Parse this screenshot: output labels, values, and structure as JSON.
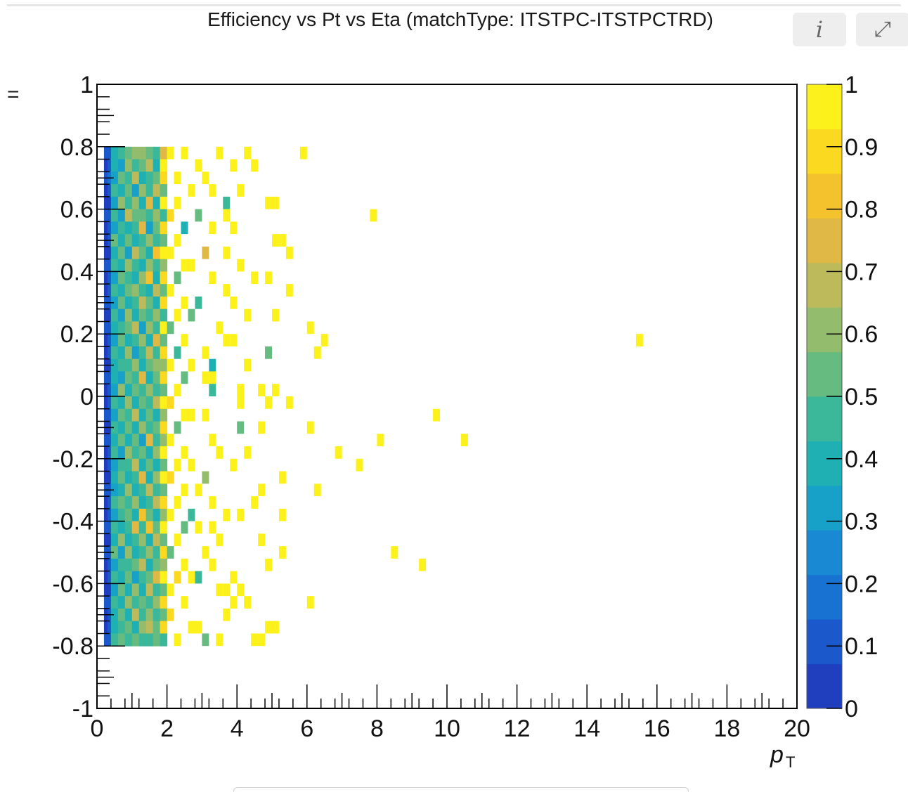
{
  "header": {
    "title": "Efficiency vs Pt vs Eta (matchType: ITSTPC-ITSTPCTRD)",
    "info_icon": "info-icon",
    "info_glyph": "i",
    "expand_icon": "expand-icon",
    "expand_glyph": "⤢"
  },
  "corner_glyph": "=",
  "chart_data": {
    "type": "heatmap",
    "title": "Efficiency vs Pt vs Eta (matchType: ITSTPC-ITSTPCTRD)",
    "xlabel": "p",
    "xlabel_sub": "T",
    "ylabel": "",
    "xlim": [
      0,
      20
    ],
    "ylim": [
      -1,
      1
    ],
    "zlim": [
      0,
      1
    ],
    "x_ticks": [
      "0",
      "2",
      "4",
      "6",
      "8",
      "10",
      "12",
      "14",
      "16",
      "18",
      "20"
    ],
    "y_ticks": [
      "-1",
      "-0.8",
      "-0.6",
      "-0.4",
      "-0.2",
      "0",
      "0.2",
      "0.4",
      "0.6",
      "0.8",
      "1"
    ],
    "z_ticks": [
      "0",
      "0.1",
      "0.2",
      "0.3",
      "0.4",
      "0.5",
      "0.6",
      "0.7",
      "0.8",
      "0.9",
      "1"
    ],
    "grid": false,
    "colorbar": "right",
    "palette": [
      "#1f3fbf",
      "#1a58cc",
      "#1872d2",
      "#1889d2",
      "#17a0c8",
      "#1fb0b4",
      "#3bb79a",
      "#66bb80",
      "#93bd6c",
      "#bdba5c",
      "#dfb845",
      "#f4c22c",
      "#fbd920",
      "#fdf11b"
    ],
    "background": "#ffffff",
    "frame_color": "#000000",
    "bin_width": 0.2,
    "bin_height": 0.04,
    "eta_rows": [
      0.78,
      0.74,
      0.7,
      0.66,
      0.62,
      0.58,
      0.54,
      0.5,
      0.46,
      0.42,
      0.38,
      0.34,
      0.3,
      0.26,
      0.22,
      0.18,
      0.14,
      0.1,
      0.06,
      0.02,
      -0.02,
      -0.06,
      -0.1,
      -0.14,
      -0.18,
      -0.22,
      -0.26,
      -0.3,
      -0.34,
      -0.38,
      -0.42,
      -0.46,
      -0.5,
      -0.54,
      -0.58,
      -0.62,
      -0.66,
      -0.7,
      -0.74,
      -0.78
    ],
    "pt_bins": [
      0.3,
      0.5,
      0.7,
      0.9,
      1.1,
      1.3,
      1.5,
      1.7,
      1.9
    ],
    "dense_grid": [
      [
        0.12,
        0.38,
        0.45,
        0.52,
        0.58,
        0.62,
        0.55,
        0.48,
        0.72
      ],
      [
        0.08,
        0.42,
        0.35,
        0.61,
        0.47,
        0.53,
        0.66,
        0.4,
        0.93
      ],
      [
        0.15,
        0.3,
        0.52,
        0.44,
        0.7,
        0.38,
        0.49,
        0.57,
        0.88
      ],
      [
        0.1,
        0.47,
        0.4,
        0.55,
        0.33,
        0.6,
        0.45,
        0.68,
        0.52
      ],
      [
        0.06,
        0.35,
        0.58,
        0.49,
        0.62,
        0.41,
        0.77,
        0.36,
        0.95
      ],
      [
        0.13,
        0.44,
        0.31,
        0.66,
        0.5,
        0.57,
        0.43,
        0.62,
        0.48
      ],
      [
        0.09,
        0.29,
        0.48,
        0.38,
        0.45,
        0.72,
        0.35,
        0.5,
        0.9
      ],
      [
        0.11,
        0.5,
        0.42,
        0.57,
        0.39,
        0.46,
        0.61,
        0.44,
        0.55
      ],
      [
        0.07,
        0.37,
        0.55,
        0.34,
        0.68,
        0.51,
        0.4,
        0.79,
        0.97
      ],
      [
        0.14,
        0.43,
        0.36,
        0.6,
        0.48,
        0.39,
        0.58,
        0.47,
        0.63
      ],
      [
        0.1,
        0.32,
        0.51,
        0.45,
        0.37,
        0.64,
        0.82,
        0.41,
        0.92
      ],
      [
        0.08,
        0.46,
        0.39,
        0.53,
        0.59,
        0.44,
        0.37,
        0.7,
        0.51
      ],
      [
        0.12,
        0.34,
        0.57,
        0.41,
        0.46,
        0.69,
        0.52,
        0.38,
        0.86
      ],
      [
        0.06,
        0.48,
        0.33,
        0.62,
        0.4,
        0.55,
        0.45,
        0.61,
        0.49
      ],
      [
        0.13,
        0.39,
        0.46,
        0.5,
        0.71,
        0.35,
        0.63,
        0.47,
        0.94
      ],
      [
        0.09,
        0.31,
        0.53,
        0.37,
        0.49,
        0.58,
        0.4,
        0.75,
        0.56
      ],
      [
        0.11,
        0.45,
        0.4,
        0.59,
        0.34,
        0.47,
        0.67,
        0.43,
        0.91
      ],
      [
        0.07,
        0.36,
        0.49,
        0.43,
        0.61,
        0.39,
        0.5,
        0.58,
        0.62
      ],
      [
        0.14,
        0.42,
        0.35,
        0.56,
        0.45,
        0.74,
        0.38,
        0.52,
        0.89
      ],
      [
        0.1,
        0.33,
        0.58,
        0.4,
        0.52,
        0.44,
        0.6,
        0.46,
        0.54
      ],
      [
        0.08,
        0.47,
        0.38,
        0.63,
        0.36,
        0.5,
        0.43,
        0.69,
        0.96
      ],
      [
        0.12,
        0.3,
        0.51,
        0.46,
        0.66,
        0.41,
        0.57,
        0.39,
        0.58
      ],
      [
        0.06,
        0.44,
        0.42,
        0.54,
        0.4,
        0.62,
        0.48,
        0.55,
        0.87
      ],
      [
        0.13,
        0.37,
        0.56,
        0.39,
        0.5,
        0.35,
        0.73,
        0.44,
        0.6
      ],
      [
        0.09,
        0.49,
        0.34,
        0.61,
        0.44,
        0.57,
        0.41,
        0.63,
        0.93
      ],
      [
        0.11,
        0.32,
        0.47,
        0.48,
        0.69,
        0.42,
        0.54,
        0.37,
        0.53
      ],
      [
        0.07,
        0.41,
        0.55,
        0.36,
        0.47,
        0.76,
        0.39,
        0.58,
        0.95
      ],
      [
        0.14,
        0.35,
        0.4,
        0.58,
        0.38,
        0.49,
        0.65,
        0.45,
        0.57
      ],
      [
        0.1,
        0.46,
        0.52,
        0.43,
        0.6,
        0.37,
        0.47,
        0.71,
        0.9
      ],
      [
        0.08,
        0.29,
        0.44,
        0.55,
        0.42,
        0.81,
        0.56,
        0.4,
        0.62
      ],
      [
        0.12,
        0.43,
        0.37,
        0.49,
        0.72,
        0.46,
        0.84,
        0.53,
        0.94
      ],
      [
        0.06,
        0.38,
        0.59,
        0.41,
        0.46,
        0.58,
        0.42,
        0.66,
        0.55
      ],
      [
        0.13,
        0.5,
        0.33,
        0.64,
        0.39,
        0.44,
        0.61,
        0.48,
        0.91
      ],
      [
        0.09,
        0.34,
        0.48,
        0.45,
        0.57,
        0.7,
        0.38,
        0.56,
        0.59
      ],
      [
        0.11,
        0.44,
        0.41,
        0.52,
        0.35,
        0.47,
        0.53,
        0.78,
        0.97
      ],
      [
        0.07,
        0.31,
        0.54,
        0.38,
        0.63,
        0.4,
        0.66,
        0.43,
        0.52
      ],
      [
        0.14,
        0.47,
        0.36,
        0.59,
        0.48,
        0.55,
        0.44,
        0.61,
        0.88
      ],
      [
        0.1,
        0.36,
        0.5,
        0.42,
        0.67,
        0.43,
        0.58,
        0.47,
        0.56
      ],
      [
        0.08,
        0.4,
        0.45,
        0.56,
        0.41,
        0.62,
        0.71,
        0.5,
        0.92
      ],
      [
        0.12,
        0.48,
        0.52,
        0.47,
        0.55,
        0.49,
        0.46,
        0.54,
        0.45
      ]
    ],
    "sparse_bins": [
      {
        "x": 2.1,
        "y": 0.78,
        "v": 0.98
      },
      {
        "x": 2.5,
        "y": 0.78,
        "v": 0.95
      },
      {
        "x": 2.9,
        "y": 0.74,
        "v": 1.0
      },
      {
        "x": 3.5,
        "y": 0.78,
        "v": 1.0
      },
      {
        "x": 3.9,
        "y": 0.74,
        "v": 1.0
      },
      {
        "x": 4.3,
        "y": 0.78,
        "v": 1.0
      },
      {
        "x": 4.5,
        "y": 0.74,
        "v": 1.0
      },
      {
        "x": 5.9,
        "y": 0.78,
        "v": 0.95
      },
      {
        "x": 2.3,
        "y": 0.7,
        "v": 1.0
      },
      {
        "x": 2.7,
        "y": 0.66,
        "v": 1.0
      },
      {
        "x": 3.1,
        "y": 0.7,
        "v": 1.0
      },
      {
        "x": 3.3,
        "y": 0.66,
        "v": 1.0
      },
      {
        "x": 4.1,
        "y": 0.66,
        "v": 1.0
      },
      {
        "x": 3.7,
        "y": 0.62,
        "v": 0.45
      },
      {
        "x": 4.9,
        "y": 0.62,
        "v": 1.0
      },
      {
        "x": 5.1,
        "y": 0.62,
        "v": 1.0
      },
      {
        "x": 3.7,
        "y": 0.58,
        "v": 1.0
      },
      {
        "x": 7.9,
        "y": 0.58,
        "v": 0.98
      },
      {
        "x": 3.3,
        "y": 0.54,
        "v": 1.0
      },
      {
        "x": 3.9,
        "y": 0.54,
        "v": 1.0
      },
      {
        "x": 5.1,
        "y": 0.5,
        "v": 1.0
      },
      {
        "x": 5.3,
        "y": 0.5,
        "v": 1.0
      },
      {
        "x": 5.5,
        "y": 0.46,
        "v": 1.0
      },
      {
        "x": 3.1,
        "y": 0.46,
        "v": 0.75
      },
      {
        "x": 3.7,
        "y": 0.46,
        "v": 1.0
      },
      {
        "x": 4.1,
        "y": 0.42,
        "v": 1.0
      },
      {
        "x": 4.5,
        "y": 0.38,
        "v": 1.0
      },
      {
        "x": 4.9,
        "y": 0.38,
        "v": 1.0
      },
      {
        "x": 5.5,
        "y": 0.34,
        "v": 1.0
      },
      {
        "x": 3.3,
        "y": 0.38,
        "v": 1.0
      },
      {
        "x": 3.7,
        "y": 0.34,
        "v": 1.0
      },
      {
        "x": 2.9,
        "y": 0.3,
        "v": 0.45
      },
      {
        "x": 3.9,
        "y": 0.3,
        "v": 1.0
      },
      {
        "x": 4.3,
        "y": 0.26,
        "v": 1.0
      },
      {
        "x": 5.1,
        "y": 0.26,
        "v": 1.0
      },
      {
        "x": 3.5,
        "y": 0.22,
        "v": 1.0
      },
      {
        "x": 4.9,
        "y": 0.14,
        "v": 0.5
      },
      {
        "x": 3.1,
        "y": 0.14,
        "v": 1.0
      },
      {
        "x": 4.3,
        "y": 0.1,
        "v": 1.0
      },
      {
        "x": 4.7,
        "y": 0.02,
        "v": 1.0
      },
      {
        "x": 6.1,
        "y": 0.22,
        "v": 0.98
      },
      {
        "x": 3.7,
        "y": 0.18,
        "v": 1.0
      },
      {
        "x": 3.9,
        "y": 0.18,
        "v": 1.0
      },
      {
        "x": 6.5,
        "y": 0.18,
        "v": 1.0
      },
      {
        "x": 6.3,
        "y": 0.14,
        "v": 1.0
      },
      {
        "x": 15.5,
        "y": 0.18,
        "v": 0.97
      },
      {
        "x": 3.3,
        "y": 0.1,
        "v": 0.4
      },
      {
        "x": 4.3,
        "y": 0.1,
        "v": 1.0
      },
      {
        "x": 3.1,
        "y": 0.06,
        "v": 1.0
      },
      {
        "x": 3.3,
        "y": 0.06,
        "v": 1.0
      },
      {
        "x": 4.1,
        "y": 0.02,
        "v": 1.0
      },
      {
        "x": 5.1,
        "y": 0.02,
        "v": 1.0
      },
      {
        "x": 4.9,
        "y": -0.02,
        "v": 1.0
      },
      {
        "x": 3.3,
        "y": 0.02,
        "v": 0.45
      },
      {
        "x": 4.1,
        "y": -0.02,
        "v": 1.0
      },
      {
        "x": 5.5,
        "y": -0.02,
        "v": 1.0
      },
      {
        "x": 3.1,
        "y": -0.06,
        "v": 1.0
      },
      {
        "x": 4.1,
        "y": -0.1,
        "v": 0.5
      },
      {
        "x": 4.7,
        "y": -0.1,
        "v": 1.0
      },
      {
        "x": 9.7,
        "y": -0.06,
        "v": 1.0
      },
      {
        "x": 3.3,
        "y": -0.14,
        "v": 1.0
      },
      {
        "x": 6.1,
        "y": -0.1,
        "v": 1.0
      },
      {
        "x": 8.1,
        "y": -0.14,
        "v": 1.0
      },
      {
        "x": 10.5,
        "y": -0.14,
        "v": 0.98
      },
      {
        "x": 3.5,
        "y": -0.18,
        "v": 1.0
      },
      {
        "x": 4.3,
        "y": -0.18,
        "v": 1.0
      },
      {
        "x": 6.9,
        "y": -0.18,
        "v": 1.0
      },
      {
        "x": 7.5,
        "y": -0.22,
        "v": 1.0
      },
      {
        "x": 3.9,
        "y": -0.22,
        "v": 1.0
      },
      {
        "x": 3.1,
        "y": -0.26,
        "v": 0.6
      },
      {
        "x": 5.3,
        "y": -0.26,
        "v": 1.0
      },
      {
        "x": 6.3,
        "y": -0.3,
        "v": 1.0
      },
      {
        "x": 4.7,
        "y": -0.3,
        "v": 1.0
      },
      {
        "x": 3.3,
        "y": -0.34,
        "v": 1.0
      },
      {
        "x": 4.5,
        "y": -0.34,
        "v": 1.0
      },
      {
        "x": 4.1,
        "y": -0.38,
        "v": 1.0
      },
      {
        "x": 5.3,
        "y": -0.38,
        "v": 1.0
      },
      {
        "x": 3.7,
        "y": -0.38,
        "v": 1.0
      },
      {
        "x": 2.9,
        "y": -0.42,
        "v": 1.0
      },
      {
        "x": 3.3,
        "y": -0.42,
        "v": 1.0
      },
      {
        "x": 4.7,
        "y": -0.46,
        "v": 1.0
      },
      {
        "x": 3.5,
        "y": -0.46,
        "v": 1.0
      },
      {
        "x": 5.3,
        "y": -0.5,
        "v": 1.0
      },
      {
        "x": 8.5,
        "y": -0.5,
        "v": 0.98
      },
      {
        "x": 3.1,
        "y": -0.5,
        "v": 1.0
      },
      {
        "x": 3.3,
        "y": -0.54,
        "v": 0.95
      },
      {
        "x": 4.9,
        "y": -0.54,
        "v": 1.0
      },
      {
        "x": 9.3,
        "y": -0.54,
        "v": 1.0
      },
      {
        "x": 3.9,
        "y": -0.58,
        "v": 1.0
      },
      {
        "x": 2.9,
        "y": -0.58,
        "v": 0.45
      },
      {
        "x": 3.5,
        "y": -0.62,
        "v": 1.0
      },
      {
        "x": 3.7,
        "y": -0.62,
        "v": 1.0
      },
      {
        "x": 4.1,
        "y": -0.62,
        "v": 1.0
      },
      {
        "x": 4.3,
        "y": -0.66,
        "v": 1.0
      },
      {
        "x": 6.1,
        "y": -0.66,
        "v": 1.0
      },
      {
        "x": 3.9,
        "y": -0.66,
        "v": 1.0
      },
      {
        "x": 3.7,
        "y": -0.7,
        "v": 1.0
      },
      {
        "x": 2.9,
        "y": -0.74,
        "v": 1.0
      },
      {
        "x": 4.9,
        "y": -0.74,
        "v": 1.0
      },
      {
        "x": 5.1,
        "y": -0.74,
        "v": 1.0
      },
      {
        "x": 3.5,
        "y": -0.78,
        "v": 1.0
      },
      {
        "x": 4.5,
        "y": -0.78,
        "v": 1.0
      },
      {
        "x": 4.7,
        "y": -0.78,
        "v": 1.0
      },
      {
        "x": 3.1,
        "y": -0.78,
        "v": 0.5
      },
      {
        "x": 2.3,
        "y": -0.78,
        "v": 1.0
      },
      {
        "x": 2.7,
        "y": -0.74,
        "v": 1.0
      },
      {
        "x": 2.1,
        "y": -0.7,
        "v": 0.9
      },
      {
        "x": 2.3,
        "y": 0.62,
        "v": 1.0
      },
      {
        "x": 2.1,
        "y": 0.58,
        "v": 0.9
      },
      {
        "x": 2.5,
        "y": 0.54,
        "v": 0.4
      },
      {
        "x": 2.3,
        "y": 0.5,
        "v": 1.0
      },
      {
        "x": 2.1,
        "y": 0.46,
        "v": 0.95
      },
      {
        "x": 2.5,
        "y": 0.42,
        "v": 1.0
      },
      {
        "x": 2.3,
        "y": 0.38,
        "v": 0.55
      },
      {
        "x": 2.1,
        "y": 0.34,
        "v": 1.0
      },
      {
        "x": 2.5,
        "y": 0.3,
        "v": 0.95
      },
      {
        "x": 2.3,
        "y": 0.26,
        "v": 1.0
      },
      {
        "x": 2.1,
        "y": 0.22,
        "v": 0.5
      },
      {
        "x": 2.5,
        "y": 0.18,
        "v": 1.0
      },
      {
        "x": 2.3,
        "y": 0.14,
        "v": 0.45
      },
      {
        "x": 2.1,
        "y": 0.1,
        "v": 1.0
      },
      {
        "x": 2.5,
        "y": 0.06,
        "v": 0.55
      },
      {
        "x": 2.3,
        "y": 0.02,
        "v": 1.0
      },
      {
        "x": 2.1,
        "y": -0.02,
        "v": 0.92
      },
      {
        "x": 2.5,
        "y": -0.06,
        "v": 1.0
      },
      {
        "x": 2.3,
        "y": -0.1,
        "v": 0.5
      },
      {
        "x": 2.1,
        "y": -0.14,
        "v": 1.0
      },
      {
        "x": 2.5,
        "y": -0.18,
        "v": 0.95
      },
      {
        "x": 2.3,
        "y": -0.22,
        "v": 1.0
      },
      {
        "x": 2.1,
        "y": -0.26,
        "v": 0.9
      },
      {
        "x": 2.5,
        "y": -0.3,
        "v": 1.0
      },
      {
        "x": 2.3,
        "y": -0.34,
        "v": 1.0
      },
      {
        "x": 2.1,
        "y": -0.38,
        "v": 0.96
      },
      {
        "x": 2.5,
        "y": -0.42,
        "v": 0.5
      },
      {
        "x": 2.3,
        "y": -0.46,
        "v": 1.0
      },
      {
        "x": 2.1,
        "y": -0.5,
        "v": 0.55
      },
      {
        "x": 2.5,
        "y": -0.54,
        "v": 1.0
      },
      {
        "x": 2.3,
        "y": -0.58,
        "v": 0.9
      },
      {
        "x": 2.1,
        "y": -0.62,
        "v": 1.0
      },
      {
        "x": 2.5,
        "y": -0.66,
        "v": 0.95
      },
      {
        "x": 2.7,
        "y": 0.42,
        "v": 1.0
      },
      {
        "x": 2.7,
        "y": 0.26,
        "v": 0.5
      },
      {
        "x": 2.7,
        "y": 0.1,
        "v": 1.0
      },
      {
        "x": 2.7,
        "y": -0.06,
        "v": 1.0
      },
      {
        "x": 2.7,
        "y": -0.22,
        "v": 1.0
      },
      {
        "x": 2.7,
        "y": -0.38,
        "v": 0.45
      },
      {
        "x": 2.7,
        "y": -0.58,
        "v": 1.0
      },
      {
        "x": 2.9,
        "y": -0.3,
        "v": 1.0
      },
      {
        "x": 2.9,
        "y": 0.58,
        "v": 0.5
      }
    ]
  }
}
